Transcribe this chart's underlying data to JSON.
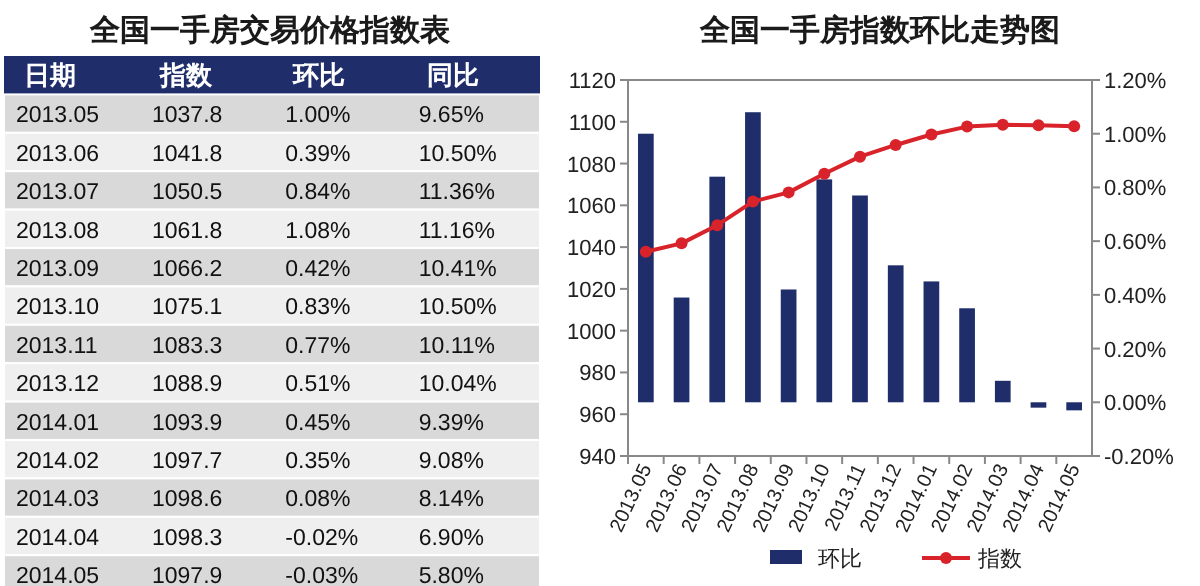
{
  "chart_data": [
    {
      "type": "heatmap",
      "title": "全国一手房交易价格指数表",
      "ylabel": "日期",
      "categories": [
        "指数",
        "环比",
        "同比"
      ],
      "y_categories": [
        "2013.05",
        "2013.06",
        "2013.07",
        "2013.08",
        "2013.09",
        "2013.10",
        "2013.11",
        "2013.12",
        "2014.01",
        "2014.02",
        "2014.03",
        "2014.04",
        "2014.05"
      ],
      "cells": [
        [
          1037.8,
          1.0,
          9.65
        ],
        [
          1041.8,
          0.39,
          10.5
        ],
        [
          1050.5,
          0.84,
          11.36
        ],
        [
          1061.8,
          1.08,
          11.16
        ],
        [
          1066.2,
          0.42,
          10.41
        ],
        [
          1075.1,
          0.83,
          10.5
        ],
        [
          1083.3,
          0.77,
          10.11
        ],
        [
          1088.9,
          0.51,
          10.04
        ],
        [
          1093.9,
          0.45,
          9.39
        ],
        [
          1097.7,
          0.35,
          9.08
        ],
        [
          1098.6,
          0.08,
          8.14
        ],
        [
          1098.3,
          -0.02,
          6.9
        ],
        [
          1097.9,
          -0.03,
          5.8
        ]
      ],
      "cell_labels": [
        [
          "1037.8",
          "1.00%",
          "9.65%"
        ],
        [
          "1041.8",
          "0.39%",
          "10.50%"
        ],
        [
          "1050.5",
          "0.84%",
          "11.36%"
        ],
        [
          "1061.8",
          "1.08%",
          "11.16%"
        ],
        [
          "1066.2",
          "0.42%",
          "10.41%"
        ],
        [
          "1075.1",
          "0.83%",
          "10.50%"
        ],
        [
          "1083.3",
          "0.77%",
          "10.11%"
        ],
        [
          "1088.9",
          "0.51%",
          "10.04%"
        ],
        [
          "1093.9",
          "0.45%",
          "9.39%"
        ],
        [
          "1097.7",
          "0.35%",
          "9.08%"
        ],
        [
          "1098.6",
          "0.08%",
          "8.14%"
        ],
        [
          "1098.3",
          "-0.02%",
          "6.90%"
        ],
        [
          "1097.9",
          "-0.03%",
          "5.80%"
        ]
      ]
    },
    {
      "type": "bar",
      "title": "全国一手房指数环比走势图",
      "categories": [
        "2013.05",
        "2013.06",
        "2013.07",
        "2013.08",
        "2013.09",
        "2013.10",
        "2013.11",
        "2013.12",
        "2014.01",
        "2014.02",
        "2014.03",
        "2014.04",
        "2014.05"
      ],
      "series": [
        {
          "name": "环比",
          "type": "bar",
          "axis": "y2",
          "color": "#1f2d6b",
          "values": [
            1.0,
            0.39,
            0.84,
            1.08,
            0.42,
            0.83,
            0.77,
            0.51,
            0.45,
            0.35,
            0.08,
            -0.02,
            -0.03
          ]
        },
        {
          "name": "指数",
          "type": "line",
          "color": "#d9232a",
          "values": [
            1037.8,
            1041.8,
            1050.5,
            1061.8,
            1066.2,
            1075.1,
            1083.3,
            1088.9,
            1093.9,
            1097.7,
            1098.6,
            1098.3,
            1097.9
          ]
        }
      ],
      "marker": "circle",
      "line_style": "solid",
      "ylim": [
        940,
        1120
      ],
      "yticks": [
        940,
        960,
        980,
        1000,
        1020,
        1040,
        1060,
        1080,
        1100,
        1120
      ],
      "y2lim": [
        -0.2,
        1.2
      ],
      "y2ticks": [
        {
          "value": -0.2,
          "label": "-0.20%"
        },
        {
          "value": 0,
          "label": "0.00%"
        },
        {
          "value": 0.2,
          "label": "0.20%"
        },
        {
          "value": 0.4,
          "label": "0.40%"
        },
        {
          "value": 0.6,
          "label": "0.60%"
        },
        {
          "value": 0.8,
          "label": "0.80%"
        },
        {
          "value": 1.0,
          "label": "1.00%"
        },
        {
          "value": 1.2,
          "label": "1.20%"
        }
      ],
      "legend": "bottom"
    }
  ]
}
